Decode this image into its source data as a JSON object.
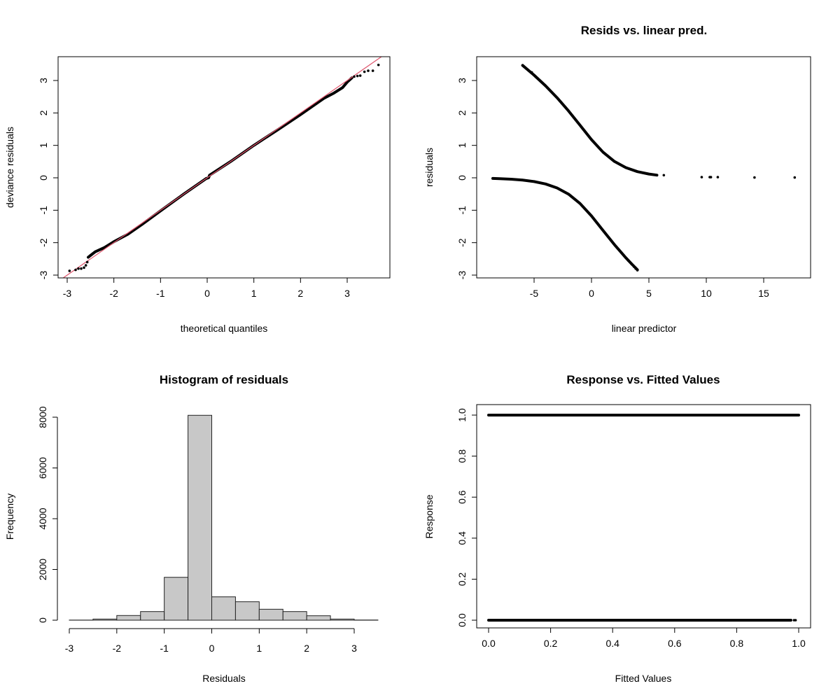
{
  "chart_data": [
    {
      "type": "scatter",
      "title": "",
      "xlabel": "theoretical quantiles",
      "ylabel": "deviance residuals",
      "xlim": [
        -3.2,
        3.9
      ],
      "ylim": [
        -3.1,
        3.7
      ],
      "xticks": [
        -3,
        -2,
        -1,
        0,
        1,
        2,
        3
      ],
      "yticks": [
        -3,
        -2,
        -1,
        0,
        1,
        2,
        3
      ],
      "reference_line": {
        "color": "#DF536B",
        "from": [
          -3.2,
          -3.2
        ],
        "to": [
          3.8,
          3.8
        ]
      },
      "dense_path": [
        [
          -2.55,
          -2.45
        ],
        [
          -2.4,
          -2.28
        ],
        [
          -2.2,
          -2.15
        ],
        [
          -2.0,
          -1.97
        ],
        [
          -1.7,
          -1.74
        ],
        [
          -1.4,
          -1.44
        ],
        [
          -1.0,
          -1.02
        ],
        [
          -0.5,
          -0.5
        ],
        [
          -0.02,
          -0.02
        ],
        [
          0.03,
          0.0
        ],
        [
          0.05,
          0.08
        ],
        [
          0.5,
          0.5
        ],
        [
          1.0,
          1.0
        ],
        [
          1.5,
          1.47
        ],
        [
          2.0,
          1.95
        ],
        [
          2.5,
          2.45
        ],
        [
          2.7,
          2.6
        ],
        [
          2.9,
          2.78
        ],
        [
          3.0,
          2.95
        ],
        [
          3.1,
          3.08
        ]
      ],
      "points": [
        [
          -2.95,
          -2.87
        ],
        [
          -2.82,
          -2.84
        ],
        [
          -2.76,
          -2.8
        ],
        [
          -2.7,
          -2.8
        ],
        [
          -2.64,
          -2.77
        ],
        [
          -2.6,
          -2.7
        ],
        [
          -2.57,
          -2.6
        ],
        [
          3.15,
          3.12
        ],
        [
          3.22,
          3.14
        ],
        [
          3.28,
          3.15
        ],
        [
          3.37,
          3.27
        ],
        [
          3.45,
          3.3
        ],
        [
          3.55,
          3.3
        ],
        [
          3.67,
          3.48
        ]
      ]
    },
    {
      "type": "scatter",
      "title": "Resids vs. linear pred.",
      "xlabel": "linear predictor",
      "ylabel": "residuals",
      "xlim": [
        -9.3,
        18.4
      ],
      "ylim": [
        -3.1,
        3.7
      ],
      "xticks": [
        -5,
        0,
        5,
        10,
        15
      ],
      "yticks": [
        -3,
        -2,
        -1,
        0,
        1,
        2,
        3
      ],
      "upper_branch": [
        [
          -6,
          3.465
        ],
        [
          -5,
          3.164
        ],
        [
          -4,
          2.835
        ],
        [
          -3,
          2.469
        ],
        [
          -2,
          2.062
        ],
        [
          -1,
          1.621
        ],
        [
          0,
          1.177
        ],
        [
          1,
          0.792
        ],
        [
          2,
          0.504
        ],
        [
          3,
          0.312
        ],
        [
          4,
          0.19
        ],
        [
          5,
          0.116
        ],
        [
          5.7,
          0.082
        ]
      ],
      "lower_branch": [
        [
          -8.6,
          -0.019
        ],
        [
          -8,
          -0.026
        ],
        [
          -7,
          -0.043
        ],
        [
          -6,
          -0.07
        ],
        [
          -5,
          -0.116
        ],
        [
          -4,
          -0.19
        ],
        [
          -3,
          -0.312
        ],
        [
          -2,
          -0.504
        ],
        [
          -1,
          -0.792
        ],
        [
          0,
          -1.177
        ],
        [
          1,
          -1.621
        ],
        [
          2,
          -2.062
        ],
        [
          3,
          -2.469
        ],
        [
          3.5,
          -2.657
        ],
        [
          4,
          -2.835
        ]
      ],
      "points": [
        [
          -6,
          3.47
        ],
        [
          -5.2,
          3.25
        ],
        [
          3.2,
          -2.55
        ],
        [
          3.5,
          -2.66
        ],
        [
          3.7,
          -2.74
        ],
        [
          3.85,
          -2.8
        ],
        [
          4.0,
          -2.85
        ],
        [
          6.3,
          0.08
        ],
        [
          9.6,
          0.02
        ],
        [
          10.3,
          0.02
        ],
        [
          10.4,
          0.02
        ],
        [
          11.0,
          0.02
        ],
        [
          14.2,
          0.01
        ],
        [
          17.7,
          0.01
        ]
      ]
    },
    {
      "type": "bar",
      "title": "Histogram of residuals",
      "xlabel": "Residuals",
      "ylabel": "Frequency",
      "bin_edges": [
        -3,
        -2.5,
        -2,
        -1.5,
        -1,
        -0.5,
        0,
        0.5,
        1,
        1.5,
        2,
        2.5,
        3,
        3.5
      ],
      "values": [
        5,
        45,
        185,
        340,
        1690,
        8075,
        920,
        727,
        432,
        340,
        175,
        45,
        8
      ],
      "ylim": [
        0,
        8000
      ],
      "xticks": [
        -3,
        -2,
        -1,
        0,
        1,
        2,
        3
      ],
      "yticks": [
        0,
        2000,
        4000,
        6000,
        8000
      ],
      "fill": "#C8C8C8"
    },
    {
      "type": "scatter",
      "title": "Response vs. Fitted Values",
      "xlabel": "Fitted Values",
      "ylabel": "Response",
      "xlim": [
        -0.04,
        1.04
      ],
      "ylim": [
        -0.04,
        1.04
      ],
      "xticks": [
        "0.0",
        "0.2",
        "0.4",
        "0.6",
        "0.8",
        "1.0"
      ],
      "yticks": [
        "0.0",
        "0.2",
        "0.4",
        "0.6",
        "0.8",
        "1.0"
      ],
      "bands": [
        {
          "y": 1,
          "from": 0.0,
          "to": 1.0
        },
        {
          "y": 0,
          "from": 0.0,
          "to": 0.975
        }
      ],
      "points": [
        [
          0.985,
          0
        ],
        [
          0.99,
          0
        ]
      ]
    }
  ]
}
